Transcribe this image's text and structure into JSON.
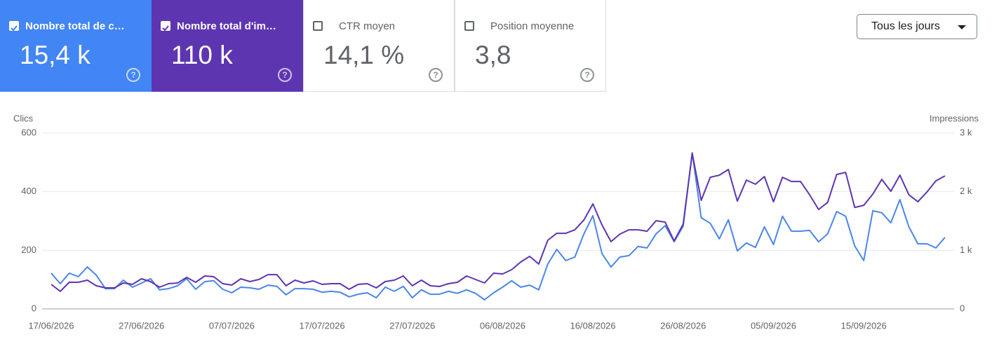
{
  "cards": [
    {
      "label": "Nombre total de c…",
      "value": "15,4 k",
      "checked": true,
      "color": "#4285f4"
    },
    {
      "label": "Nombre total d'im…",
      "value": "110 k",
      "checked": true,
      "color": "#5e35b1"
    },
    {
      "label": "CTR moyen",
      "value": "14,1 %",
      "checked": false
    },
    {
      "label": "Position moyenne",
      "value": "3,8",
      "checked": false
    }
  ],
  "dropdown": "Tous les jours",
  "chart_data": {
    "type": "line",
    "y_label": "Clics",
    "y2_label": "Impressions",
    "categories": [
      "17/06/2026",
      null,
      null,
      null,
      null,
      null,
      null,
      null,
      null,
      null,
      "27/06/2026",
      null,
      null,
      null,
      null,
      null,
      null,
      null,
      null,
      null,
      "07/07/2026",
      null,
      null,
      null,
      null,
      null,
      null,
      null,
      null,
      null,
      "17/07/2026",
      null,
      null,
      null,
      null,
      null,
      null,
      null,
      null,
      null,
      "27/07/2026",
      null,
      null,
      null,
      null,
      null,
      null,
      null,
      null,
      null,
      "06/08/2026",
      null,
      null,
      null,
      null,
      null,
      null,
      null,
      null,
      null,
      "16/08/2026",
      null,
      null,
      null,
      null,
      null,
      null,
      null,
      null,
      null,
      "26/08/2026",
      null,
      null,
      null,
      null,
      null,
      null,
      null,
      null,
      null,
      "05/09/2026",
      null,
      null,
      null,
      null,
      null,
      null,
      null,
      null,
      null,
      "15/09/2026",
      null,
      null,
      null,
      null,
      null,
      null,
      null,
      null,
      null
    ],
    "ylim": [
      0,
      600
    ],
    "yticks": [
      0,
      200,
      400,
      600
    ],
    "y2lim": [
      0,
      3000
    ],
    "y2ticks": [
      0,
      {
        "value": 1000,
        "label": "1 k"
      },
      {
        "value": 2000,
        "label": "2 k"
      },
      {
        "value": 3000,
        "label": "3 k"
      }
    ],
    "grid": true,
    "series": [
      {
        "name": "Clics",
        "color": "#4a86e8",
        "values": [
          122,
          86,
          122,
          110,
          143,
          115,
          69,
          69,
          98,
          74,
          88,
          103,
          65,
          69,
          79,
          103,
          67,
          93,
          96,
          67,
          55,
          74,
          72,
          67,
          81,
          77,
          48,
          69,
          69,
          67,
          57,
          60,
          57,
          41,
          50,
          55,
          38,
          74,
          60,
          77,
          38,
          65,
          50,
          50,
          60,
          53,
          65,
          53,
          31,
          55,
          74,
          96,
          74,
          81,
          65,
          153,
          203,
          165,
          177,
          256,
          318,
          189,
          143,
          177,
          182,
          213,
          208,
          256,
          284,
          229,
          282,
          533,
          311,
          292,
          239,
          304,
          198,
          225,
          210,
          280,
          220,
          316,
          265,
          265,
          268,
          229,
          256,
          332,
          316,
          215,
          165,
          335,
          328,
          294,
          373,
          280,
          222,
          222,
          208,
          244
        ]
      },
      {
        "name": "Impressions",
        "color": "#5e35b1",
        "axis": "y2",
        "values": [
          418,
          299,
          454,
          454,
          490,
          394,
          358,
          358,
          442,
          418,
          514,
          466,
          370,
          430,
          442,
          538,
          454,
          562,
          550,
          430,
          406,
          514,
          466,
          502,
          585,
          585,
          394,
          490,
          442,
          478,
          418,
          430,
          430,
          335,
          418,
          430,
          358,
          466,
          490,
          562,
          394,
          490,
          394,
          382,
          430,
          454,
          562,
          502,
          442,
          609,
          597,
          669,
          800,
          896,
          765,
          1171,
          1290,
          1290,
          1350,
          1517,
          1792,
          1434,
          1147,
          1278,
          1350,
          1350,
          1326,
          1505,
          1481,
          1159,
          1446,
          2652,
          1852,
          2246,
          2282,
          2378,
          1840,
          2198,
          2127,
          2258,
          1828,
          2246,
          2174,
          2174,
          1947,
          1697,
          1816,
          2294,
          2330,
          1732,
          1768,
          1959,
          2210,
          2007,
          2282,
          1947,
          1828,
          1995,
          2186,
          2270
        ]
      }
    ]
  }
}
